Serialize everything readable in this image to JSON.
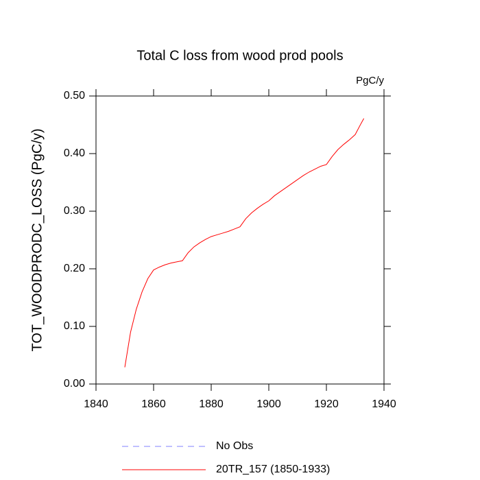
{
  "chart_data": {
    "type": "line",
    "title": "Total C loss from wood prod pools",
    "units_label": "PgC/y",
    "y_label": "TOT_WOODPRODC_LOSS  (PgC/y)",
    "x": [
      1850,
      1852,
      1854,
      1856,
      1858,
      1860,
      1862,
      1864,
      1866,
      1868,
      1870,
      1872,
      1874,
      1876,
      1878,
      1880,
      1882,
      1884,
      1886,
      1888,
      1890,
      1892,
      1894,
      1896,
      1898,
      1900,
      1902,
      1904,
      1906,
      1908,
      1910,
      1912,
      1914,
      1916,
      1918,
      1920,
      1922,
      1924,
      1926,
      1928,
      1930,
      1932,
      1933
    ],
    "series": [
      {
        "name": "20TR_157 (1850-1933)",
        "color": "#ff0000",
        "values": [
          0.029,
          0.09,
          0.13,
          0.16,
          0.183,
          0.198,
          0.203,
          0.207,
          0.21,
          0.212,
          0.214,
          0.228,
          0.238,
          0.245,
          0.251,
          0.256,
          0.259,
          0.262,
          0.265,
          0.269,
          0.273,
          0.287,
          0.297,
          0.305,
          0.312,
          0.318,
          0.327,
          0.334,
          0.341,
          0.348,
          0.355,
          0.362,
          0.368,
          0.373,
          0.378,
          0.381,
          0.395,
          0.407,
          0.416,
          0.424,
          0.433,
          0.452,
          0.461
        ]
      }
    ],
    "extra_legend": [
      {
        "name": "No Obs",
        "color": "#8080ff",
        "dash": "dashed"
      }
    ],
    "xlim": [
      1840,
      1940
    ],
    "xticks": [
      1840,
      1860,
      1880,
      1900,
      1920,
      1940
    ],
    "ylim": [
      0,
      0.5
    ],
    "yticks": [
      {
        "value": 0,
        "label": "0.00"
      },
      {
        "value": 0.1,
        "label": "0.10"
      },
      {
        "value": 0.2,
        "label": "0.20"
      },
      {
        "value": 0.3,
        "label": "0.30"
      },
      {
        "value": 0.4,
        "label": "0.40"
      },
      {
        "value": 0.5,
        "label": "0.50"
      }
    ]
  }
}
